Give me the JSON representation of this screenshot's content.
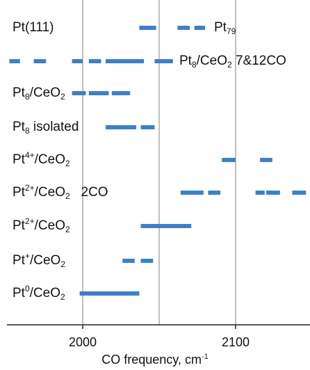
{
  "chart_data": {
    "type": "range_bar",
    "xlabel": "CO frequency, cm",
    "xlabel_sup": "-1",
    "xlim": [
      1950,
      2150
    ],
    "xticks": [
      2000,
      2100
    ],
    "gridlines_x": [
      2000,
      2050,
      2100
    ],
    "bar_color": "#3d7fc8",
    "rows": [
      {
        "label": "Pt(111)",
        "annotation": "Pt",
        "annotation_sub": "79",
        "segments": [
          [
            2037,
            2048
          ],
          [
            2062,
            2070
          ],
          [
            2073,
            2080
          ]
        ]
      },
      {
        "label": "",
        "annotation": "Pt",
        "annotation_sub": "8",
        "annotation_tail": "/CeO",
        "annotation_sub2": "2",
        "annotation_after": " 7&12CO",
        "segments": [
          [
            1952,
            1959
          ],
          [
            1968,
            1976
          ],
          [
            1993,
            2000
          ],
          [
            2004,
            2012
          ],
          [
            2015,
            2040
          ],
          [
            2047,
            2059
          ]
        ]
      },
      {
        "label": "Pt",
        "label_sub": "8",
        "label_tail": "/CeO",
        "label_sub2": "2",
        "segments": [
          [
            1993,
            2002
          ],
          [
            2004,
            2017
          ],
          [
            2019,
            2031
          ]
        ]
      },
      {
        "label": "Pt",
        "label_sub": "8",
        "label_tail": " isolated",
        "segments": [
          [
            2015,
            2035
          ],
          [
            2038,
            2047
          ]
        ]
      },
      {
        "label": "Pt",
        "label_sup": "4+",
        "label_tail": "/CeO",
        "label_sub2": "2",
        "segments": [
          [
            2091,
            2100
          ],
          [
            2116,
            2124
          ]
        ]
      },
      {
        "label": "Pt",
        "label_sup": "2+",
        "label_tail": "/CeO",
        "label_sub2": "2",
        "label_after": "   2CO",
        "segments": [
          [
            2064,
            2079
          ],
          [
            2082,
            2090
          ],
          [
            2113,
            2119
          ],
          [
            2120,
            2129
          ],
          [
            2137,
            2146
          ]
        ]
      },
      {
        "label": "Pt",
        "label_sup": "2+",
        "label_tail": "/CeO",
        "label_sub2": "2",
        "segments": [
          [
            2038,
            2071
          ]
        ]
      },
      {
        "label": "Pt",
        "label_sup": "+",
        "label_tail": "/CeO",
        "label_sub2": "2",
        "segments": [
          [
            2026,
            2034
          ],
          [
            2038,
            2046
          ]
        ]
      },
      {
        "label": "Pt",
        "label_sup": "0",
        "label_tail": "/CeO",
        "label_sub2": "2",
        "segments": [
          [
            1998,
            2037
          ]
        ]
      }
    ]
  }
}
